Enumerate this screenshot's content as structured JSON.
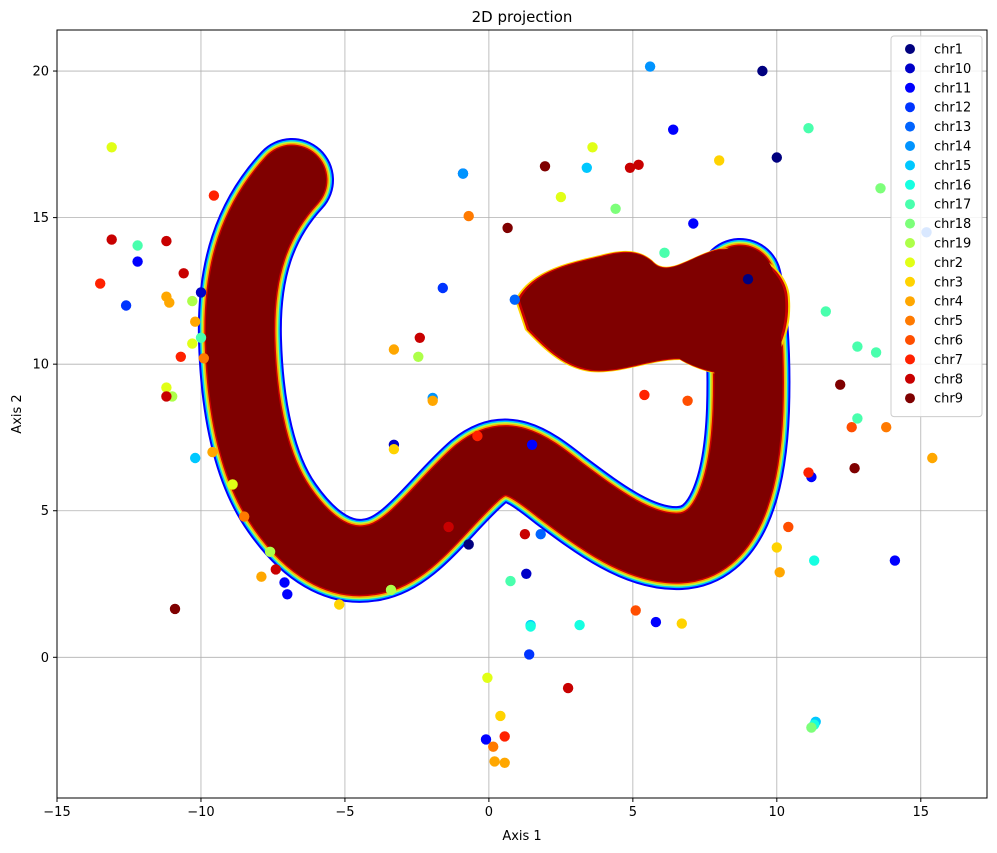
{
  "chart_data": {
    "type": "scatter",
    "title": "2D projection",
    "xlabel": "Axis 1",
    "ylabel": "Axis 2",
    "xlim": [
      -15,
      17.3
    ],
    "ylim": [
      -4.8,
      21.4
    ],
    "xticks": [
      -15,
      -10,
      -5,
      0,
      5,
      10,
      15
    ],
    "yticks": [
      0,
      5,
      10,
      15,
      20
    ],
    "grid": true,
    "legend_position": "top-right",
    "series": [
      {
        "name": "chr1",
        "color": "#00007f",
        "points": [
          [
            9.5,
            20.0
          ],
          [
            10.0,
            17.05
          ],
          [
            -0.7,
            3.85
          ],
          [
            9.0,
            12.9
          ]
        ]
      },
      {
        "name": "chr10",
        "color": "#0000c8",
        "points": [
          [
            -10.0,
            12.45
          ],
          [
            -3.3,
            7.25
          ],
          [
            1.3,
            2.85
          ]
        ]
      },
      {
        "name": "chr11",
        "color": "#0000ff",
        "points": [
          [
            -12.2,
            13.5
          ],
          [
            -7.1,
            2.55
          ],
          [
            -7.0,
            2.15
          ],
          [
            11.2,
            6.15
          ],
          [
            14.1,
            3.3
          ],
          [
            1.5,
            7.25
          ],
          [
            6.4,
            18.0
          ],
          [
            7.1,
            14.8
          ],
          [
            5.8,
            1.2
          ],
          [
            -0.1,
            -2.8
          ]
        ]
      },
      {
        "name": "chr12",
        "color": "#0034ff",
        "points": [
          [
            -12.6,
            12.0
          ],
          [
            -1.6,
            12.6
          ],
          [
            -0.9,
            16.5
          ],
          [
            1.4,
            0.1
          ]
        ]
      },
      {
        "name": "chr13",
        "color": "#0064ff",
        "points": [
          [
            15.2,
            14.5
          ],
          [
            0.9,
            12.2
          ],
          [
            1.8,
            4.2
          ]
        ]
      },
      {
        "name": "chr14",
        "color": "#0094ff",
        "points": [
          [
            5.6,
            20.15
          ],
          [
            -1.95,
            8.85
          ],
          [
            -0.9,
            16.5
          ]
        ]
      },
      {
        "name": "chr15",
        "color": "#00c8ff",
        "points": [
          [
            11.35,
            -2.2
          ],
          [
            1.45,
            1.1
          ],
          [
            -10.2,
            6.8
          ],
          [
            3.4,
            16.7
          ]
        ]
      },
      {
        "name": "chr16",
        "color": "#16ffe1",
        "points": [
          [
            1.45,
            1.05
          ],
          [
            3.15,
            1.1
          ],
          [
            11.3,
            -2.3
          ],
          [
            11.3,
            3.3
          ]
        ]
      },
      {
        "name": "chr17",
        "color": "#49ffad",
        "points": [
          [
            11.1,
            18.05
          ],
          [
            -12.2,
            14.05
          ],
          [
            -10.0,
            10.9
          ],
          [
            12.8,
            10.6
          ],
          [
            13.45,
            10.4
          ],
          [
            12.8,
            8.15
          ],
          [
            6.1,
            13.8
          ],
          [
            0.75,
            2.6
          ],
          [
            11.7,
            11.8
          ]
        ]
      },
      {
        "name": "chr18",
        "color": "#7dff7a",
        "points": [
          [
            4.4,
            15.3
          ],
          [
            11.2,
            -2.4
          ],
          [
            13.6,
            16.0
          ]
        ]
      },
      {
        "name": "chr19",
        "color": "#adff49",
        "points": [
          [
            -10.3,
            12.15
          ],
          [
            -11.0,
            8.9
          ],
          [
            -7.6,
            3.6
          ],
          [
            -3.4,
            2.3
          ],
          [
            -2.45,
            10.25
          ]
        ]
      },
      {
        "name": "chr2",
        "color": "#e1ff16",
        "points": [
          [
            -13.1,
            17.4
          ],
          [
            2.5,
            15.7
          ],
          [
            3.6,
            17.4
          ],
          [
            -0.05,
            -0.7
          ],
          [
            -8.9,
            5.9
          ],
          [
            -11.2,
            9.2
          ],
          [
            -10.3,
            10.7
          ]
        ]
      },
      {
        "name": "chr3",
        "color": "#ffd300",
        "points": [
          [
            8.0,
            16.95
          ],
          [
            -5.2,
            1.8
          ],
          [
            0.4,
            -2.0
          ],
          [
            6.7,
            1.15
          ],
          [
            10.0,
            3.75
          ],
          [
            -3.3,
            7.1
          ]
        ]
      },
      {
        "name": "chr4",
        "color": "#ffa700",
        "points": [
          [
            -11.2,
            12.3
          ],
          [
            -10.2,
            11.45
          ],
          [
            -9.6,
            7.0
          ],
          [
            -7.9,
            2.75
          ],
          [
            0.2,
            -3.55
          ],
          [
            0.55,
            -3.6
          ],
          [
            10.1,
            2.9
          ],
          [
            15.4,
            6.8
          ],
          [
            -1.95,
            8.75
          ],
          [
            -3.3,
            10.5
          ],
          [
            -11.1,
            12.1
          ]
        ]
      },
      {
        "name": "chr5",
        "color": "#ff7a00",
        "points": [
          [
            -0.7,
            15.05
          ],
          [
            -8.5,
            4.8
          ],
          [
            0.15,
            -3.05
          ],
          [
            13.8,
            7.85
          ],
          [
            -9.9,
            10.2
          ]
        ]
      },
      {
        "name": "chr6",
        "color": "#ff4e00",
        "points": [
          [
            5.1,
            1.6
          ],
          [
            10.4,
            4.45
          ],
          [
            12.6,
            7.85
          ],
          [
            6.9,
            8.75
          ]
        ]
      },
      {
        "name": "chr7",
        "color": "#ff2100",
        "points": [
          [
            -13.5,
            12.75
          ],
          [
            -9.55,
            15.75
          ],
          [
            -10.7,
            10.25
          ],
          [
            5.4,
            8.95
          ],
          [
            11.1,
            6.3
          ],
          [
            0.55,
            -2.7
          ],
          [
            -0.4,
            7.55
          ]
        ]
      },
      {
        "name": "chr8",
        "color": "#c80000",
        "points": [
          [
            -11.2,
            14.2
          ],
          [
            -13.1,
            14.25
          ],
          [
            -10.6,
            13.1
          ],
          [
            -11.2,
            8.9
          ],
          [
            -7.4,
            3.0
          ],
          [
            -2.4,
            10.9
          ],
          [
            2.75,
            -1.05
          ],
          [
            5.2,
            16.8
          ],
          [
            4.9,
            16.7
          ],
          [
            1.25,
            4.2
          ],
          [
            -1.4,
            4.45
          ]
        ]
      },
      {
        "name": "chr9",
        "color": "#7f0000",
        "points": [
          [
            -10.9,
            1.65
          ],
          [
            0.65,
            14.65
          ],
          [
            1.95,
            16.75
          ],
          [
            12.2,
            9.3
          ],
          [
            12.7,
            6.45
          ]
        ]
      }
    ]
  }
}
